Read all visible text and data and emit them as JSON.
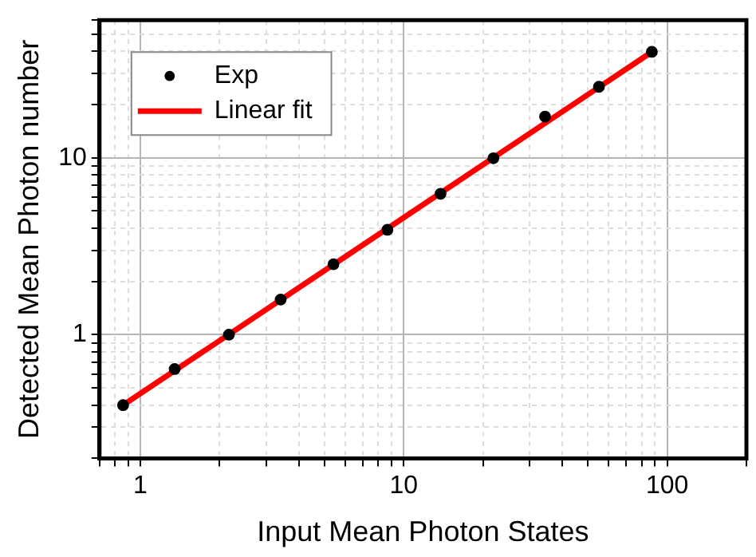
{
  "chart_data": {
    "type": "scatter",
    "xlabel": "Input Mean Photon States",
    "ylabel": "Detected Mean Photon number",
    "log": "xy",
    "grid": true,
    "legend": "top left",
    "xlim": [
      0.7,
      200
    ],
    "ylim": [
      0.2,
      60
    ],
    "xticks": [
      {
        "value": 0.7,
        "label": null
      },
      {
        "value": 0.8,
        "label": null
      },
      {
        "value": 0.9,
        "label": null
      },
      1,
      {
        "value": 2,
        "label": null
      },
      {
        "value": 3,
        "label": null
      },
      {
        "value": 4,
        "label": null
      },
      {
        "value": 5,
        "label": null
      },
      {
        "value": 6,
        "label": null
      },
      {
        "value": 7,
        "label": null
      },
      {
        "value": 8,
        "label": null
      },
      {
        "value": 9,
        "label": null
      },
      10,
      {
        "value": 20,
        "label": null
      },
      {
        "value": 30,
        "label": null
      },
      {
        "value": 40,
        "label": null
      },
      {
        "value": 50,
        "label": null
      },
      {
        "value": 60,
        "label": null
      },
      {
        "value": 70,
        "label": null
      },
      {
        "value": 80,
        "label": null
      },
      {
        "value": 90,
        "label": null
      },
      100,
      {
        "value": 200,
        "label": null
      }
    ],
    "yticks": [
      {
        "value": 0.2,
        "label": null
      },
      {
        "value": 0.3,
        "label": null
      },
      {
        "value": 0.4,
        "label": null
      },
      {
        "value": 0.5,
        "label": null
      },
      {
        "value": 0.6,
        "label": null
      },
      {
        "value": 0.7,
        "label": null
      },
      {
        "value": 0.8,
        "label": null
      },
      {
        "value": 0.9,
        "label": null
      },
      1,
      {
        "value": 2,
        "label": null
      },
      {
        "value": 3,
        "label": null
      },
      {
        "value": 4,
        "label": null
      },
      {
        "value": 5,
        "label": null
      },
      {
        "value": 6,
        "label": null
      },
      {
        "value": 7,
        "label": null
      },
      {
        "value": 8,
        "label": null
      },
      {
        "value": 9,
        "label": null
      },
      10,
      {
        "value": 20,
        "label": null
      },
      {
        "value": 30,
        "label": null
      },
      {
        "value": 40,
        "label": null
      },
      {
        "value": 50,
        "label": null
      },
      {
        "value": 60,
        "label": null
      }
    ],
    "series": [
      {
        "name": "Exp",
        "color": "#000000",
        "marker": "circle",
        "x": [
          0.86,
          1.35,
          2.17,
          3.41,
          5.41,
          8.67,
          13.8,
          21.9,
          34.4,
          55.1,
          87.5
        ],
        "values": [
          0.4,
          0.64,
          1.0,
          1.58,
          2.5,
          3.92,
          6.26,
          9.94,
          17.1,
          25.2,
          39.7
        ]
      },
      {
        "name": "Linear fit",
        "type": "line",
        "color": "#ff0000",
        "marker": "none",
        "line_style": "solid",
        "x": [
          0.86,
          87.5
        ],
        "values": [
          0.4,
          39.7
        ]
      }
    ]
  }
}
